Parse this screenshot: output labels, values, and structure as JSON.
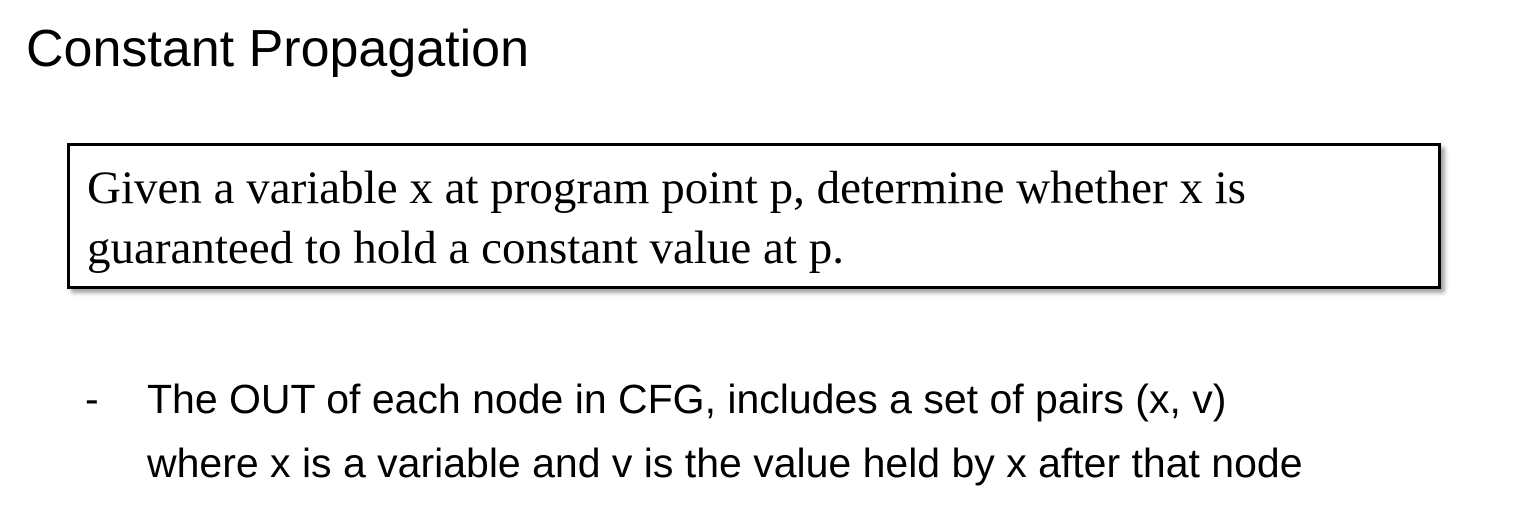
{
  "slide": {
    "title": "Constant Propagation"
  },
  "definition": {
    "lines": [
      "Given a variable x at program point p, determine whether x is",
      "guaranteed to hold a constant value at p."
    ]
  },
  "bullets": [
    {
      "marker": "-",
      "lines": [
        "The OUT of each node in CFG, includes a set of pairs (x, v)",
        "where x is a variable and v is the value held by x after that node"
      ]
    }
  ]
}
